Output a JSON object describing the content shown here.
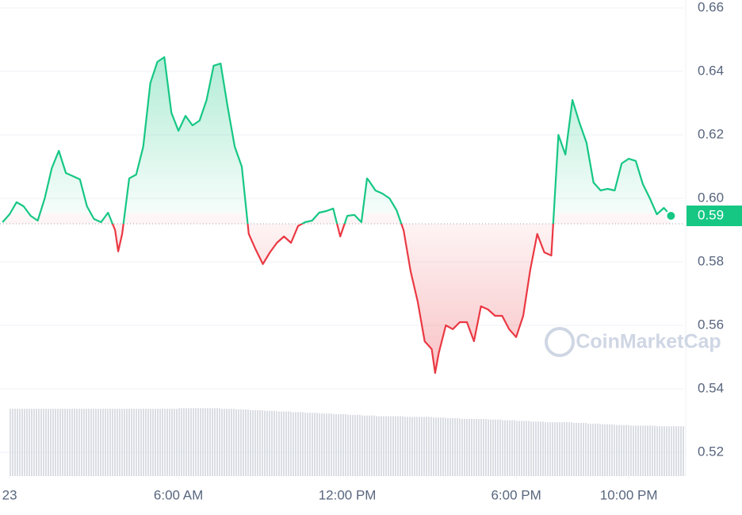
{
  "chart_data": {
    "type": "line",
    "x": [
      -0.25,
      0,
      0.25,
      0.5,
      0.75,
      1,
      1.25,
      1.5,
      1.75,
      2,
      2.25,
      2.5,
      2.75,
      3,
      3.25,
      3.5,
      3.75,
      3.86,
      4,
      4.25,
      4.5,
      4.75,
      5,
      5.25,
      5.5,
      5.75,
      6,
      6.25,
      6.5,
      6.75,
      7,
      7.25,
      7.5,
      7.75,
      8,
      8.25,
      8.5,
      8.75,
      9,
      9.25,
      9.5,
      9.75,
      10,
      10.25,
      10.5,
      10.75,
      11,
      11.25,
      11.5,
      11.75,
      12,
      12.25,
      12.5,
      12.7,
      12.75,
      13,
      13.25,
      13.5,
      13.75,
      14,
      14.25,
      14.5,
      14.75,
      15,
      15.12,
      15.25,
      15.5,
      15.75,
      16,
      16.25,
      16.5,
      16.75,
      17,
      17.25,
      17.5,
      17.75,
      18,
      18.25,
      18.5,
      18.75,
      19,
      19.25,
      19.5,
      19.75,
      20,
      20.25,
      20.5,
      20.75,
      21,
      21.25,
      21.5,
      21.75,
      22,
      22.25,
      22.5,
      22.75,
      23,
      23.25,
      23.5
    ],
    "values": [
      0.5925,
      0.595,
      0.5988,
      0.5975,
      0.5945,
      0.593,
      0.6,
      0.6095,
      0.615,
      0.608,
      0.607,
      0.606,
      0.5975,
      0.5935,
      0.5925,
      0.5955,
      0.59,
      0.5833,
      0.5888,
      0.6063,
      0.6075,
      0.6163,
      0.6363,
      0.643,
      0.6445,
      0.627,
      0.6213,
      0.626,
      0.623,
      0.6245,
      0.631,
      0.6418,
      0.6425,
      0.6288,
      0.6163,
      0.61,
      0.5888,
      0.5838,
      0.5793,
      0.583,
      0.586,
      0.588,
      0.586,
      0.5913,
      0.5925,
      0.593,
      0.5955,
      0.596,
      0.5968,
      0.588,
      0.5945,
      0.5948,
      0.5925,
      0.6063,
      0.6058,
      0.6025,
      0.6015,
      0.6,
      0.5963,
      0.59,
      0.577,
      0.5675,
      0.555,
      0.5525,
      0.545,
      0.5513,
      0.56,
      0.5588,
      0.561,
      0.561,
      0.555,
      0.566,
      0.565,
      0.563,
      0.563,
      0.5588,
      0.5563,
      0.563,
      0.5775,
      0.5888,
      0.583,
      0.582,
      0.62,
      0.6138,
      0.631,
      0.6238,
      0.6175,
      0.605,
      0.6025,
      0.603,
      0.6025,
      0.611,
      0.6125,
      0.6118,
      0.6045,
      0.6,
      0.595,
      0.597,
      0.5945
    ],
    "up_color": "#16c784",
    "down_color": "#ea3943",
    "baseline": 0.592,
    "last_price_label": "0.59",
    "watermark": "CoinMarketCap",
    "volume": {
      "x": [
        0,
        0.5,
        1,
        1.5,
        2,
        2.5,
        3,
        3.5,
        4,
        4.5,
        5,
        5.5,
        6,
        6.5,
        7,
        7.5,
        8,
        8.5,
        9,
        9.5,
        10,
        10.5,
        11,
        11.5,
        12,
        12.5,
        13,
        13.5,
        14,
        14.5,
        15,
        15.5,
        16,
        16.5,
        17,
        17.5,
        18,
        18.5,
        19,
        19.5,
        20,
        20.5,
        21,
        21.5,
        22,
        22.5,
        23,
        23.5
      ],
      "values": [
        100,
        100,
        100,
        100,
        100,
        100,
        100,
        100,
        100,
        100,
        100,
        100,
        101,
        101,
        101,
        100,
        99,
        98,
        97,
        96,
        95,
        94,
        93,
        92,
        91,
        90,
        89,
        89,
        88,
        88,
        87,
        86,
        85,
        85,
        84,
        83,
        82,
        81,
        80,
        80,
        79,
        78,
        77,
        76,
        75,
        75,
        74,
        74
      ],
      "vlim": [
        0,
        112
      ],
      "color": "#c9ced6"
    },
    "xlim": [
      -0.34,
      23.94
    ],
    "xticks": [
      {
        "value": 0,
        "label": "23"
      },
      {
        "value": 6,
        "label": "6:00 AM"
      },
      {
        "value": 12,
        "label": "12:00 PM"
      },
      {
        "value": 18,
        "label": "6:00 PM"
      },
      {
        "value": 22,
        "label": "10:00 PM"
      }
    ],
    "ylim": [
      0.5125,
      0.6625
    ],
    "yticks": [
      0.52,
      0.54,
      0.56,
      0.58,
      {
        "value": 0.6,
        "label": "0.60"
      },
      0.62,
      0.64,
      0.66
    ],
    "grid": true
  }
}
